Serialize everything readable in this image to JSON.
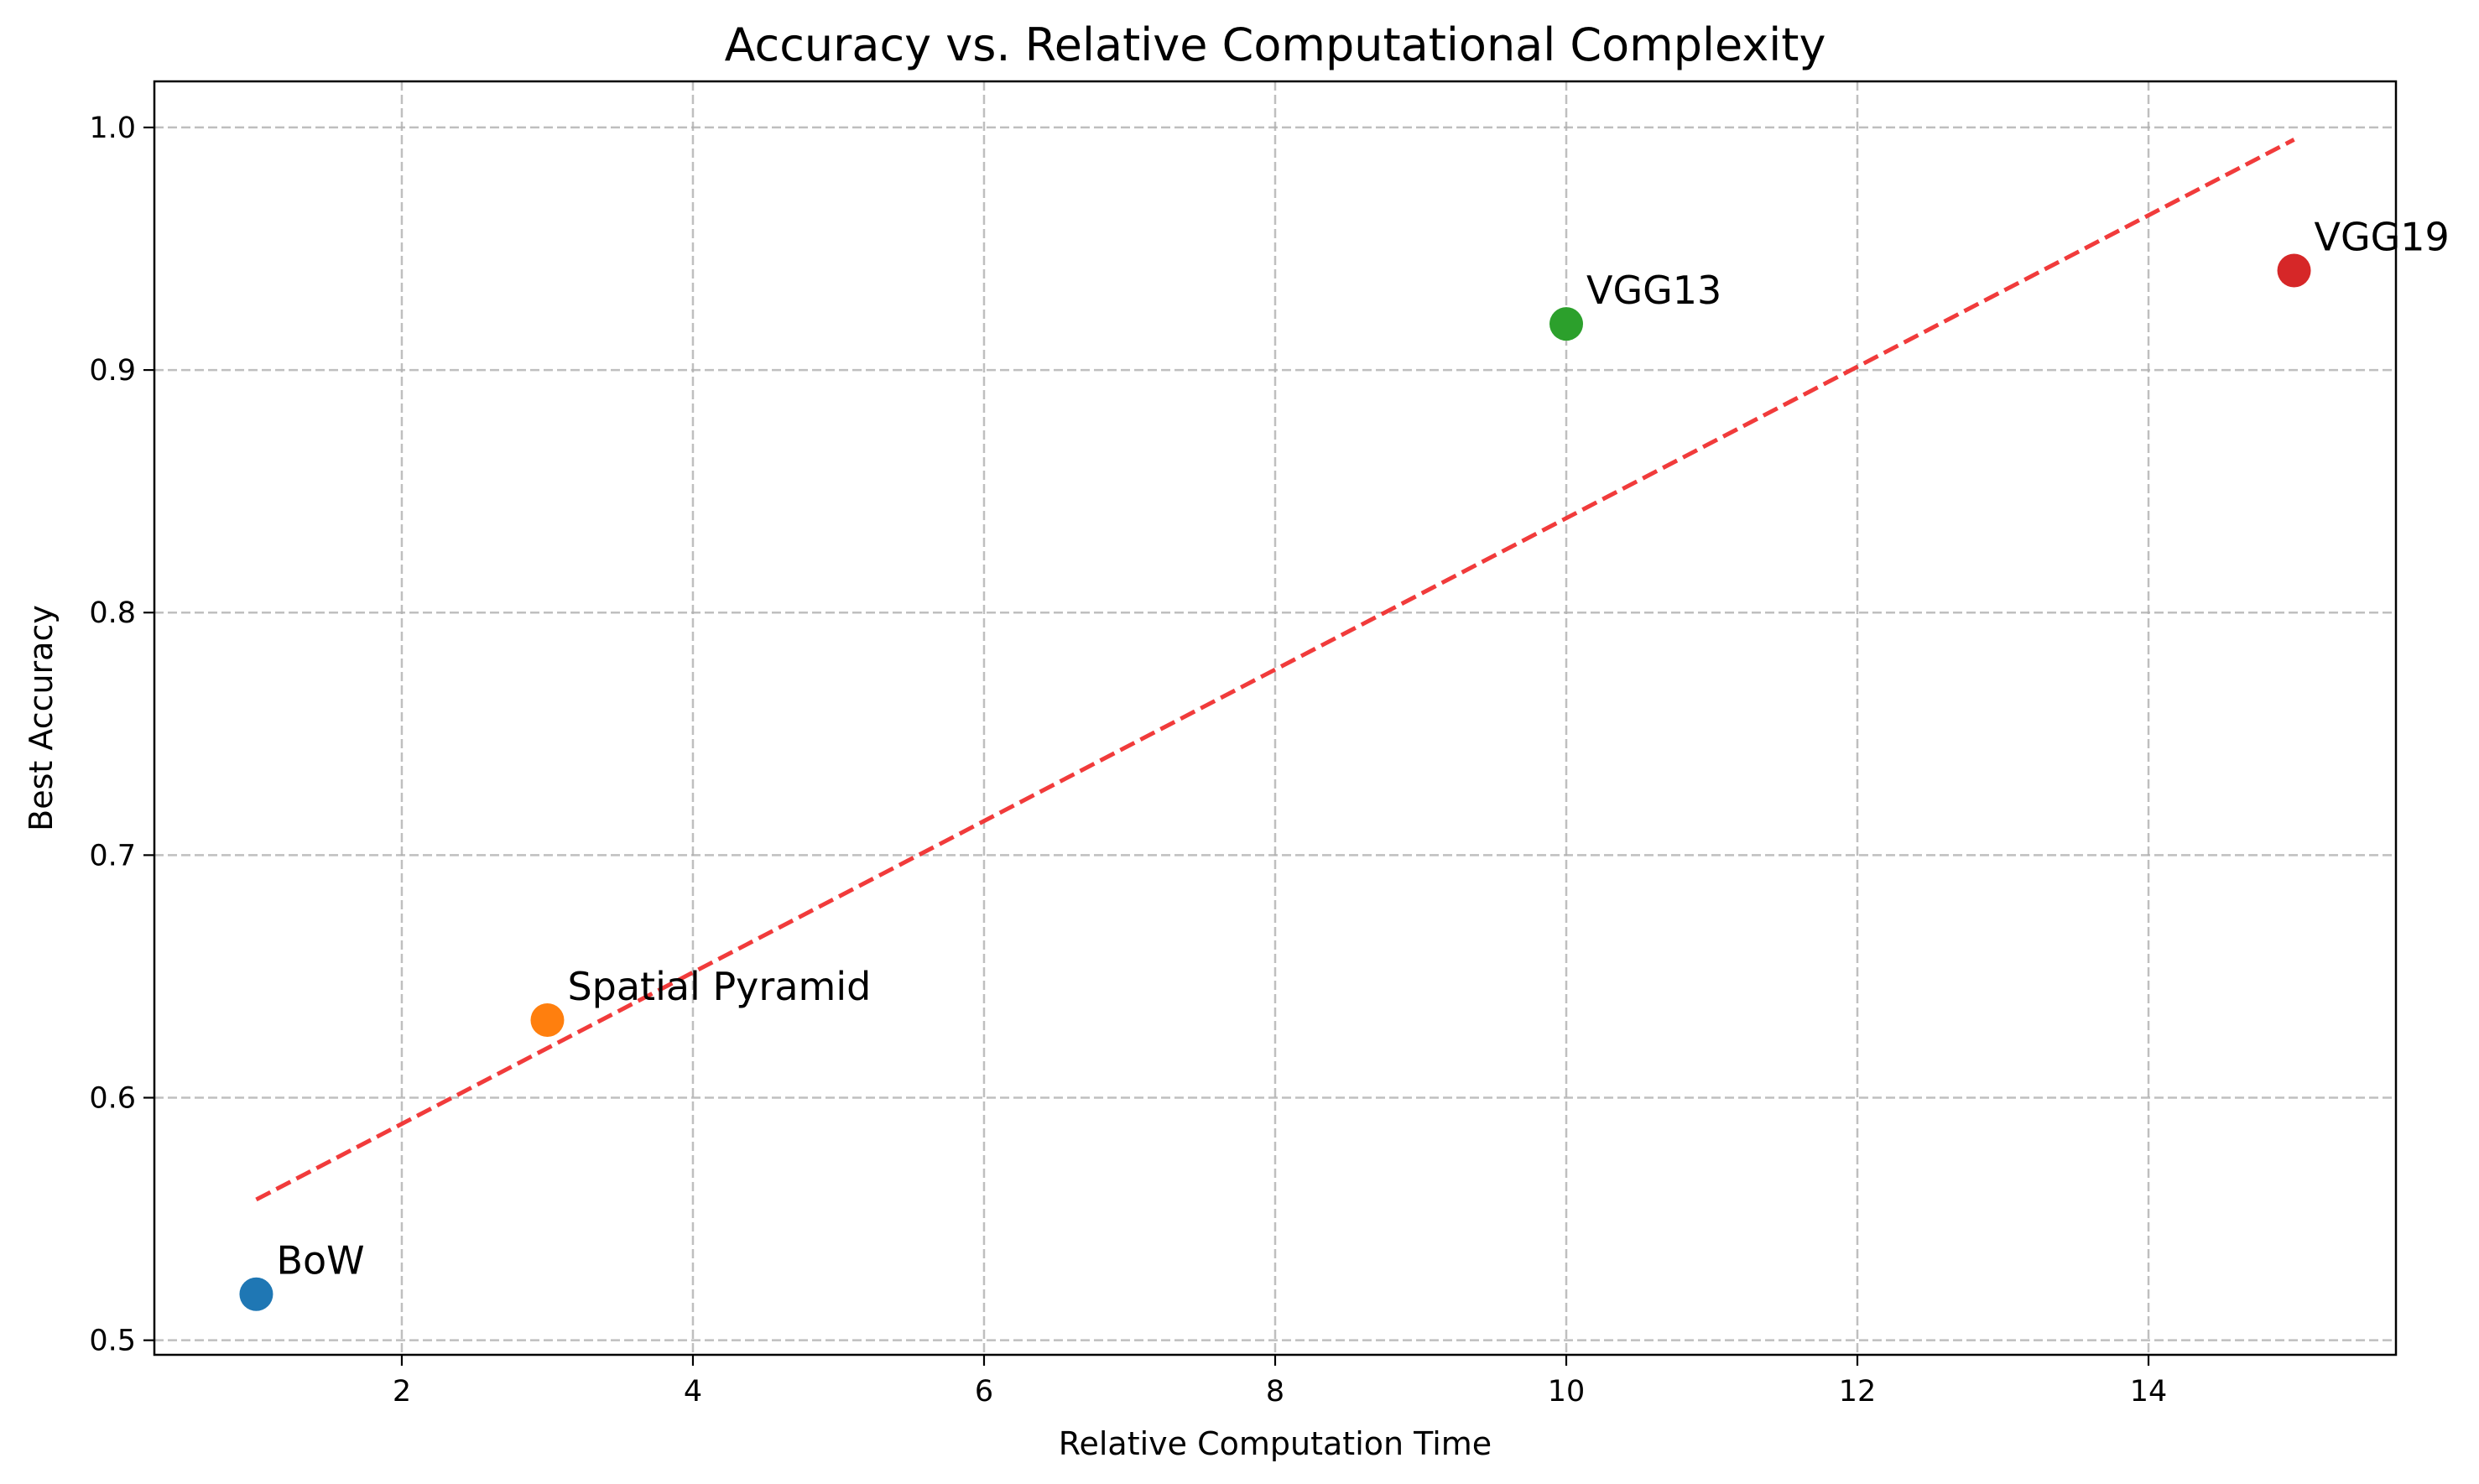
{
  "chart_data": {
    "type": "scatter",
    "title": "Accuracy vs. Relative Computational Complexity",
    "xlabel": "Relative Computation Time",
    "ylabel": "Best Accuracy",
    "xlim": [
      0.3,
      15.7
    ],
    "ylim": [
      0.494,
      1.019
    ],
    "xticks": [
      2,
      4,
      6,
      8,
      10,
      12,
      14
    ],
    "yticks": [
      0.5,
      0.6,
      0.7,
      0.8,
      0.9,
      1.0
    ],
    "grid": true,
    "points": [
      {
        "label": "BoW",
        "x": 1,
        "y": 0.519,
        "color": "#1f77b4"
      },
      {
        "label": "Spatial Pyramid",
        "x": 3,
        "y": 0.632,
        "color": "#ff7f0e"
      },
      {
        "label": "VGG13",
        "x": 10,
        "y": 0.919,
        "color": "#2ca02c"
      },
      {
        "label": "VGG19",
        "x": 15,
        "y": 0.941,
        "color": "#d62728"
      }
    ],
    "trendline": {
      "style": "dashed",
      "color": "#f03030",
      "x": [
        1,
        15
      ],
      "y": [
        0.558,
        0.995
      ]
    }
  }
}
